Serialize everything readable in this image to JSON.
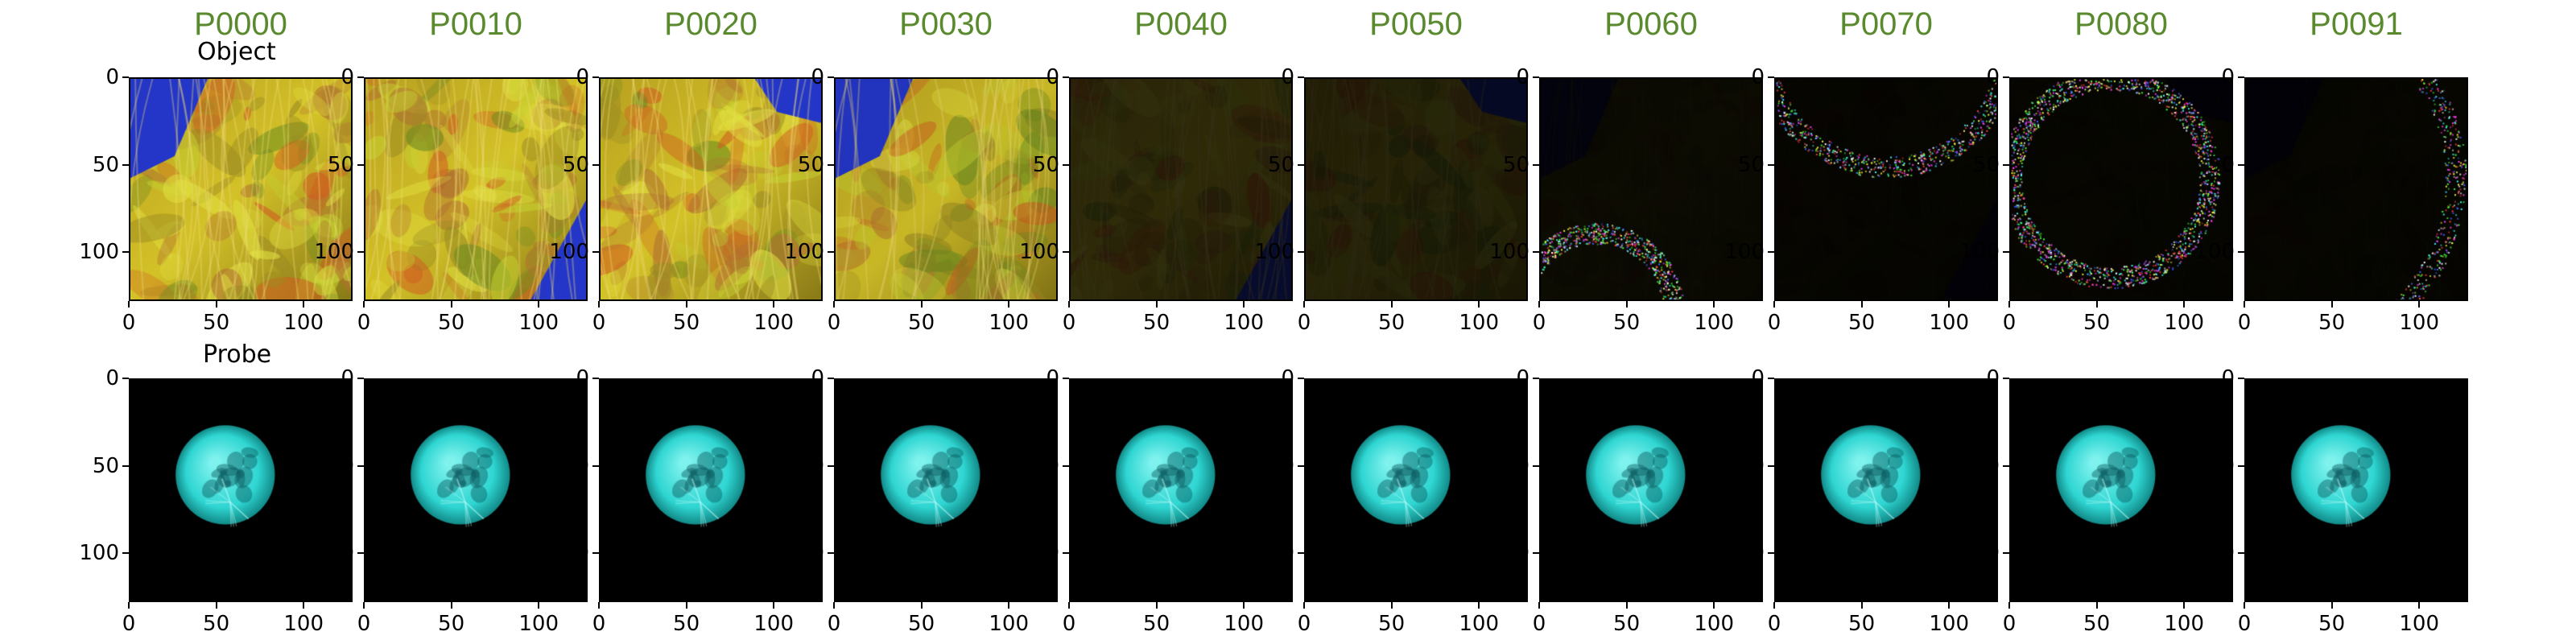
{
  "row_labels": [
    "Object",
    "Probe"
  ],
  "panel_titles": [
    "P0000",
    "P0010",
    "P0020",
    "P0030",
    "P0040",
    "P0050",
    "P0060",
    "P0070",
    "P0080",
    "P0091"
  ],
  "title_color": "#5a8a2e",
  "x_ticks": [
    "0",
    "50",
    "100"
  ],
  "y_ticks": [
    "0",
    "50",
    "100"
  ],
  "object_brightness": [
    1.0,
    1.0,
    1.0,
    0.95,
    0.22,
    0.18,
    0.06,
    0.03,
    0.03,
    0.03
  ],
  "probe_color": "#2fd6d2",
  "background_color": "#000000"
}
